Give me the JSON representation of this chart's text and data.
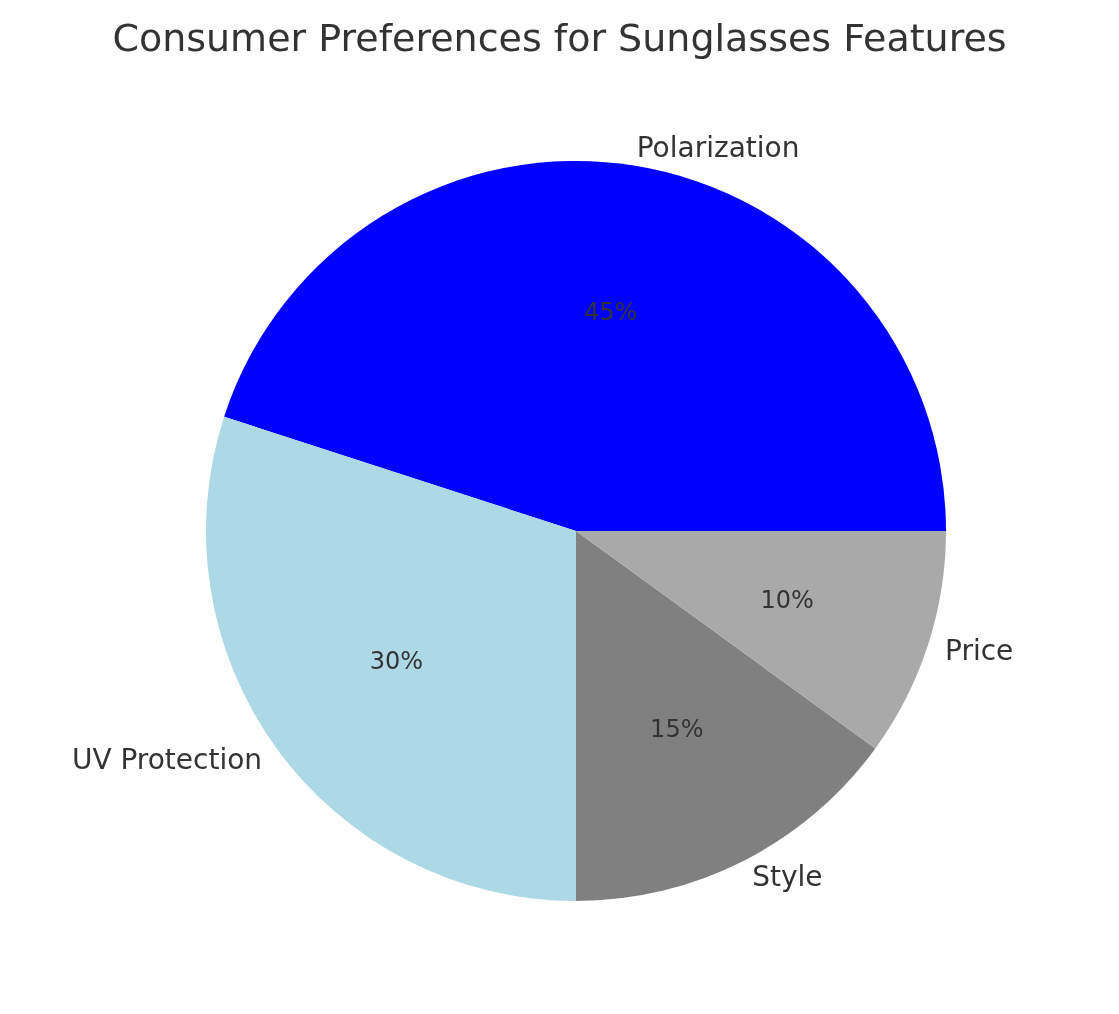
{
  "chart_data": {
    "type": "pie",
    "title": "Consumer Preferences for Sunglasses Features",
    "categories": [
      "Polarization",
      "UV Protection",
      "Style",
      "Price"
    ],
    "values": [
      45,
      30,
      15,
      10
    ],
    "colors": [
      "#0000ff",
      "#add8e6",
      "#808080",
      "#a9a9a9"
    ],
    "value_labels": [
      "45%",
      "30%",
      "15%",
      "10%"
    ],
    "legend": false
  }
}
